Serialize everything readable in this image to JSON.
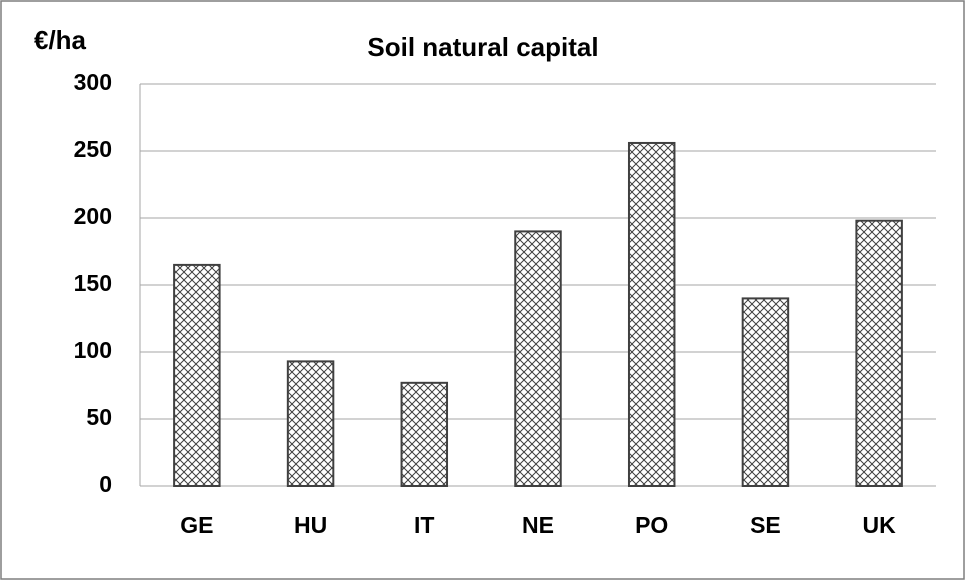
{
  "chart_data": {
    "type": "bar",
    "title": "Soil natural capital",
    "y_label": "€/ha",
    "categories": [
      "GE",
      "HU",
      "IT",
      "NE",
      "PO",
      "SE",
      "UK"
    ],
    "values": [
      165,
      93,
      77,
      190,
      256,
      140,
      198
    ],
    "color": "#404040",
    "ylim": [
      0,
      300
    ],
    "yticks": [
      0,
      50,
      100,
      150,
      200,
      250,
      300
    ],
    "grid": true
  }
}
